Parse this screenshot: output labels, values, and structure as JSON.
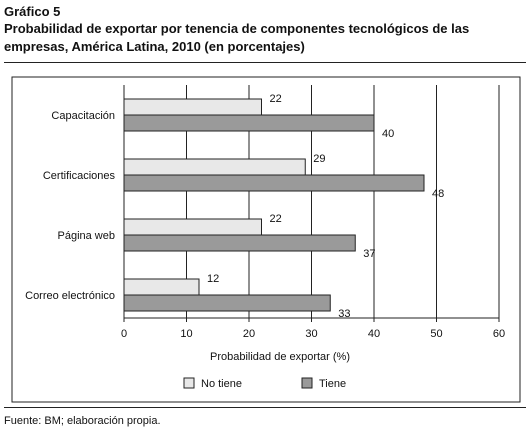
{
  "figure": {
    "label": "Gráfico 5",
    "title": "Probabilidad de exportar por tenencia de componentes tecnológicos de las empresas, América Latina, 2010 (en porcentajes)",
    "source": "Fuente: BM; elaboración propia."
  },
  "colors": {
    "no_tiene": "#e8e8e8",
    "tiene": "#9a9a9a",
    "bar_stroke": "#222222",
    "grid": "#222222"
  },
  "chart_data": {
    "type": "bar",
    "orientation": "horizontal",
    "categories": [
      "Capacitación",
      "Certificaciones",
      "Página web",
      "Correo electrónico"
    ],
    "series": [
      {
        "name": "No tiene",
        "values": [
          22,
          29,
          22,
          12
        ]
      },
      {
        "name": "Tiene",
        "values": [
          40,
          48,
          37,
          33
        ]
      }
    ],
    "xlabel": "Probabilidad de exportar (%)",
    "ylabel": "",
    "xlim": [
      0,
      60
    ],
    "xticks": [
      0,
      10,
      20,
      30,
      40,
      50,
      60
    ],
    "grid": "vertical",
    "legend_position": "bottom-center"
  }
}
